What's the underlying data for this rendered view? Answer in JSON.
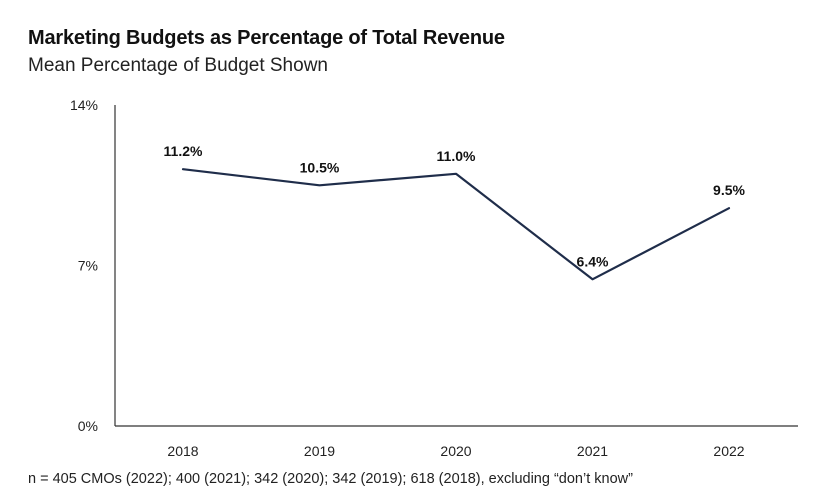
{
  "chart_data": {
    "type": "line",
    "title": "Marketing Budgets as Percentage of Total Revenue",
    "subtitle": "Mean Percentage of Budget Shown",
    "categories": [
      "2018",
      "2019",
      "2020",
      "2021",
      "2022"
    ],
    "series": [
      {
        "name": "Mean Percentage of Budget",
        "values": [
          11.2,
          10.5,
          11.0,
          6.4,
          9.5
        ]
      }
    ],
    "data_labels": [
      "11.2%",
      "10.5%",
      "11.0%",
      "6.4%",
      "9.5%"
    ],
    "yticks": [
      0,
      7,
      14
    ],
    "ytick_labels": [
      "0%",
      "7%",
      "14%"
    ],
    "ylim": [
      0,
      14
    ],
    "xlabel": "",
    "ylabel": "",
    "grid": false,
    "footnote": "n = 405 CMOs (2022); 400 (2021); 342 (2020); 342 (2019); 618 (2018), excluding “don’t know”",
    "colors": {
      "line": "#1f2d4a",
      "axis": "#333333"
    }
  }
}
